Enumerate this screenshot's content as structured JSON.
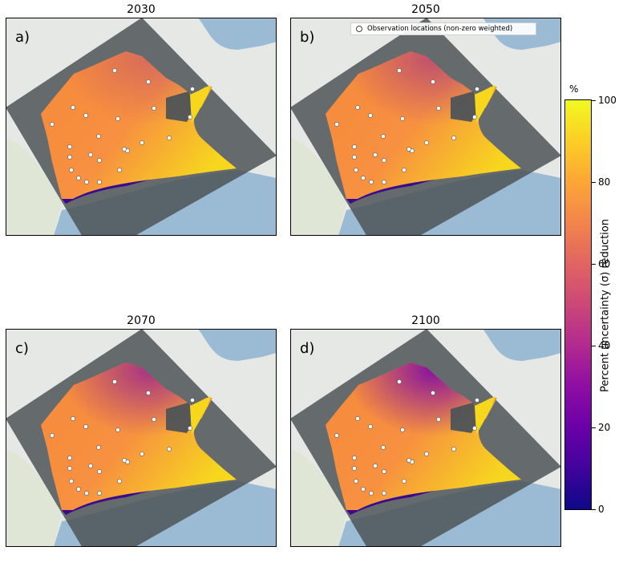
{
  "panels": [
    {
      "title": "2030",
      "label": "a)"
    },
    {
      "title": "2050",
      "label": "b)"
    },
    {
      "title": "2070",
      "label": "c)"
    },
    {
      "title": "2100",
      "label": "d)"
    }
  ],
  "legend": {
    "marker_label": "Observation locations (non-zero weighted)"
  },
  "colorbar": {
    "unit": "%",
    "title": "Percent uncertainty (σ) reduction",
    "ticks": [
      "0",
      "20",
      "40",
      "60",
      "80",
      "100"
    ],
    "range": [
      0,
      100
    ],
    "colormap": "plasma"
  },
  "colors": {
    "sea": "#9bbad4",
    "land": "#e6e8e6",
    "mask_grey": "#4e5357",
    "high": "#f7d71e",
    "mid": "#f58a3c",
    "low": "#7b05a8"
  }
}
